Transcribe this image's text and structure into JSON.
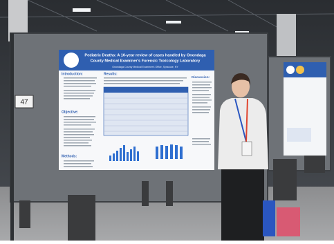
{
  "board": {
    "number": "47"
  },
  "poster": {
    "title_line1": "Pediatric Deaths: A 10-year review of cases handled by Onondaga",
    "title_line2": "County Medical Examiner's Forensic Toxicology Laboratory",
    "affiliation": "Onondaga County Medical Examiner's Office, Syracuse, NY",
    "sections": [
      "Introduction:",
      "Objective:",
      "Methods:",
      "Results:",
      "Discussion:"
    ]
  }
}
